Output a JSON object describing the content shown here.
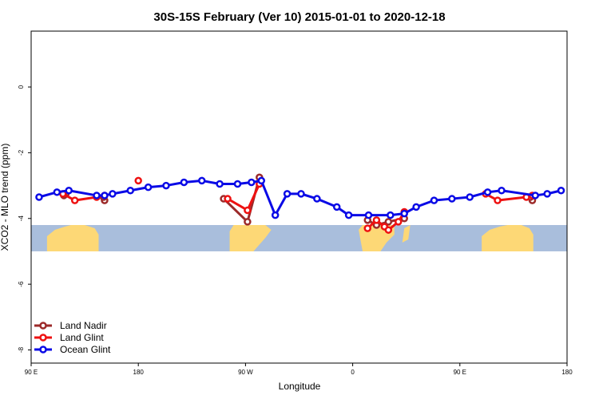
{
  "chart_data": {
    "type": "line",
    "title": "30S-15S February (Ver 10)   2015-01-01 to 2020-12-18",
    "xlabel": "Longitude",
    "ylabel": "XCO2 - MLO trend (ppm)",
    "xlim": [
      -90,
      180
    ],
    "ylim": [
      -8.4,
      1.7
    ],
    "x_ticks": [
      {
        "value": -90,
        "label": "90 E"
      },
      {
        "value": -36,
        "label": "180"
      },
      {
        "value": 18,
        "label": "90 W"
      },
      {
        "value": 72,
        "label": "0"
      },
      {
        "value": 126,
        "label": "90 E"
      },
      {
        "value": 180,
        "label": "180"
      }
    ],
    "y_ticks": [
      {
        "value": 0,
        "label": "0"
      },
      {
        "value": -2,
        "label": "-2"
      },
      {
        "value": -4,
        "label": "-4"
      },
      {
        "value": -6,
        "label": "-6"
      },
      {
        "value": -8,
        "label": "-8"
      }
    ],
    "map_band": {
      "y_top": -4.2,
      "y_bottom": -5.0,
      "ocean_color": "#a9bedc",
      "land_color": "#fdd876"
    },
    "legend_position": "bottom-left",
    "series": [
      {
        "name": "Land Nadir",
        "color": "#9c2a2a",
        "segments": [
          [
            [
              -72.5,
              -3.25
            ],
            [
              -73.5,
              -3.3
            ]
          ],
          [
            [
              -53,
              -3.45
            ],
            [
              -53.5,
              -3.35
            ]
          ],
          [
            [
              7,
              -3.4
            ],
            [
              19,
              -4.1
            ],
            [
              25,
              -2.75
            ]
          ],
          [
            [
              79.5,
              -4.05
            ],
            [
              84,
              -4.2
            ],
            [
              90,
              -4.1
            ],
            [
              98,
              -4.0
            ]
          ],
          [
            [
              162.5,
              -3.45
            ],
            [
              161.5,
              -3.35
            ]
          ]
        ]
      },
      {
        "name": "Land Glint",
        "color": "#ee1111",
        "segments": [
          [
            [
              -74,
              -3.25
            ],
            [
              -68,
              -3.45
            ],
            [
              -57,
              -3.35
            ],
            [
              -53,
              -3.3
            ]
          ],
          [
            [
              -36,
              -2.85
            ]
          ],
          [
            [
              9,
              -3.4
            ],
            [
              19,
              -3.75
            ],
            [
              25,
              -2.95
            ]
          ],
          [
            [
              79.5,
              -4.3
            ],
            [
              84,
              -4.05
            ],
            [
              88,
              -4.25
            ],
            [
              90,
              -4.35
            ],
            [
              95,
              -4.1
            ],
            [
              98,
              -3.8
            ]
          ],
          [
            [
              139,
              -3.25
            ],
            [
              145,
              -3.45
            ],
            [
              159.5,
              -3.35
            ],
            [
              162.5,
              -3.3
            ]
          ]
        ]
      },
      {
        "name": "Ocean Glint",
        "color": "#0a0ae6",
        "segments": [
          [
            [
              -86,
              -3.35
            ],
            [
              -77,
              -3.2
            ],
            [
              -71,
              -3.15
            ],
            [
              -57,
              -3.3
            ],
            [
              -53,
              -3.3
            ],
            [
              -49,
              -3.25
            ],
            [
              -40,
              -3.15
            ],
            [
              -31,
              -3.05
            ],
            [
              -22,
              -3.0
            ],
            [
              -13,
              -2.9
            ],
            [
              -4,
              -2.85
            ],
            [
              5,
              -2.95
            ],
            [
              14,
              -2.95
            ],
            [
              21,
              -2.9
            ],
            [
              26,
              -2.85
            ],
            [
              33,
              -3.9
            ],
            [
              39,
              -3.25
            ],
            [
              46,
              -3.25
            ],
            [
              54,
              -3.4
            ],
            [
              64,
              -3.65
            ],
            [
              70,
              -3.9
            ],
            [
              80,
              -3.9
            ],
            [
              91,
              -3.9
            ],
            [
              98,
              -3.85
            ],
            [
              104,
              -3.65
            ],
            [
              113,
              -3.45
            ],
            [
              122,
              -3.4
            ],
            [
              131,
              -3.35
            ],
            [
              140,
              -3.2
            ],
            [
              147,
              -3.15
            ],
            [
              164,
              -3.3
            ],
            [
              170,
              -3.25
            ],
            [
              177,
              -3.15
            ]
          ]
        ]
      }
    ]
  }
}
